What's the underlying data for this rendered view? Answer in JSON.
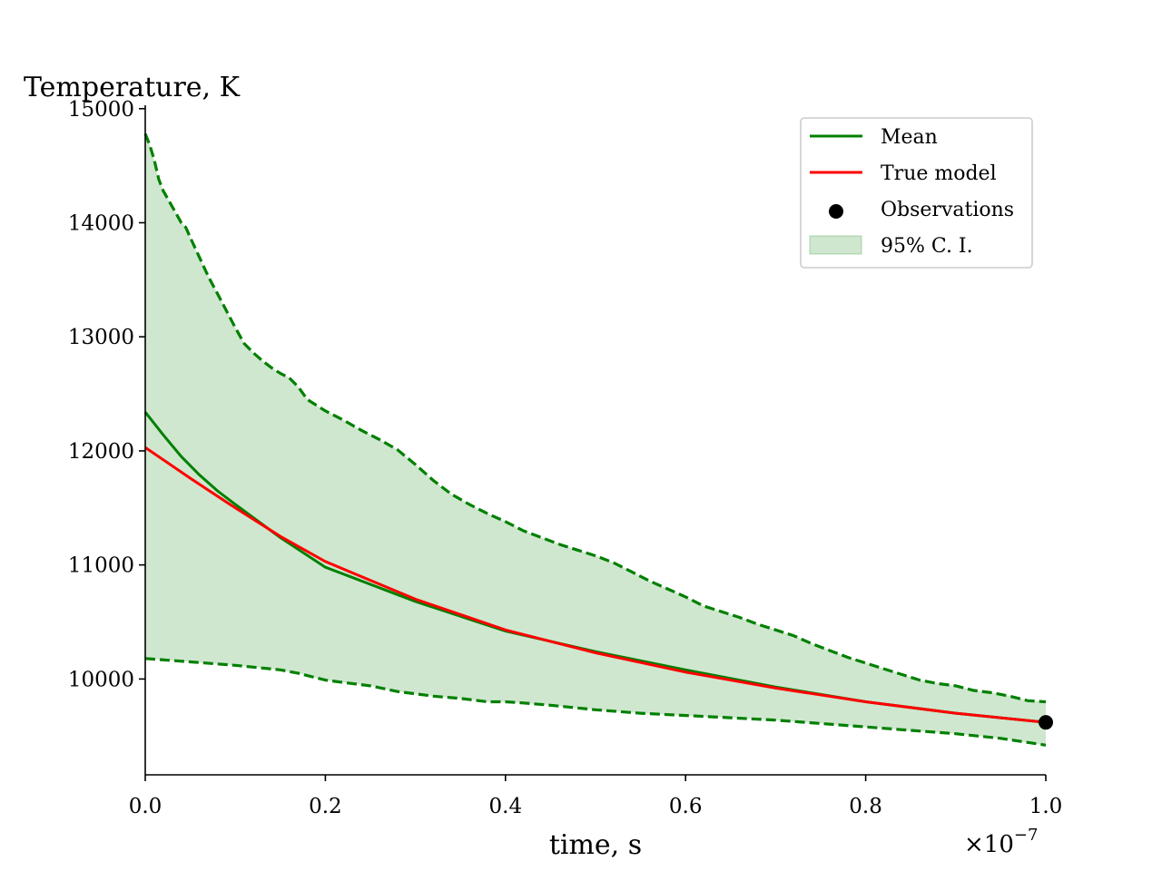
{
  "chart_data": {
    "type": "line",
    "title": "",
    "ylabel": "Temperature, K",
    "xlabel": "time, s",
    "x_multiplier_label": "×10",
    "x_multiplier_exponent": "−7",
    "xlim": [
      0.0,
      1.0
    ],
    "ylim": [
      9160,
      15030
    ],
    "x_ticks": [
      0.0,
      0.2,
      0.4,
      0.6,
      0.8,
      1.0
    ],
    "x_tick_labels": [
      "0.0",
      "0.2",
      "0.4",
      "0.6",
      "0.8",
      "1.0"
    ],
    "y_ticks": [
      10000,
      11000,
      12000,
      13000,
      14000,
      15000
    ],
    "y_tick_labels": [
      "10000",
      "11000",
      "12000",
      "13000",
      "14000",
      "15000"
    ],
    "grid": false,
    "legend_placement": "top-right",
    "series": [
      {
        "name": "Mean",
        "color": "#008000",
        "x": [
          0.0,
          0.02,
          0.04,
          0.06,
          0.08,
          0.1,
          0.15,
          0.2,
          0.3,
          0.4,
          0.5,
          0.6,
          0.7,
          0.8,
          0.9,
          1.0
        ],
        "y": [
          12340,
          12140,
          11950,
          11790,
          11650,
          11530,
          11240,
          10980,
          10680,
          10420,
          10240,
          10080,
          9930,
          9800,
          9700,
          9620
        ]
      },
      {
        "name": "True model",
        "color": "#ff0000",
        "x": [
          0.0,
          0.05,
          0.1,
          0.15,
          0.2,
          0.3,
          0.4,
          0.5,
          0.6,
          0.7,
          0.8,
          0.9,
          1.0
        ],
        "y": [
          12030,
          11760,
          11500,
          11250,
          11030,
          10700,
          10430,
          10230,
          10060,
          9920,
          9800,
          9700,
          9620
        ]
      },
      {
        "name": "Observations",
        "color": "#000000",
        "type": "scatter",
        "x": [
          1.0
        ],
        "y": [
          9620
        ]
      }
    ],
    "band": {
      "name": "95% C. I.",
      "color": "#008000",
      "upper": {
        "x": [
          0.0,
          0.005,
          0.01,
          0.015,
          0.02,
          0.03,
          0.04,
          0.045,
          0.05,
          0.06,
          0.07,
          0.08,
          0.09,
          0.1,
          0.11,
          0.12,
          0.13,
          0.14,
          0.15,
          0.16,
          0.17,
          0.18,
          0.2,
          0.22,
          0.24,
          0.26,
          0.28,
          0.3,
          0.32,
          0.34,
          0.36,
          0.38,
          0.4,
          0.42,
          0.44,
          0.46,
          0.48,
          0.5,
          0.52,
          0.54,
          0.56,
          0.58,
          0.6,
          0.62,
          0.64,
          0.66,
          0.68,
          0.7,
          0.72,
          0.74,
          0.76,
          0.78,
          0.8,
          0.82,
          0.84,
          0.86,
          0.88,
          0.9,
          0.92,
          0.94,
          0.96,
          0.98,
          1.0
        ],
        "y": [
          14780,
          14680,
          14550,
          14380,
          14280,
          14140,
          14000,
          13960,
          13870,
          13700,
          13530,
          13380,
          13230,
          13080,
          12940,
          12860,
          12790,
          12730,
          12680,
          12640,
          12560,
          12450,
          12350,
          12270,
          12180,
          12100,
          12010,
          11880,
          11740,
          11620,
          11530,
          11450,
          11380,
          11300,
          11240,
          11180,
          11130,
          11080,
          11020,
          10940,
          10860,
          10790,
          10720,
          10640,
          10590,
          10540,
          10480,
          10430,
          10380,
          10310,
          10250,
          10190,
          10140,
          10090,
          10040,
          9990,
          9960,
          9940,
          9900,
          9880,
          9850,
          9810,
          9800
        ]
      },
      "lower": {
        "x": [
          0.0,
          0.05,
          0.1,
          0.15,
          0.17,
          0.2,
          0.22,
          0.25,
          0.28,
          0.3,
          0.32,
          0.35,
          0.38,
          0.4,
          0.42,
          0.45,
          0.5,
          0.55,
          0.6,
          0.65,
          0.7,
          0.75,
          0.8,
          0.85,
          0.9,
          0.95,
          1.0
        ],
        "y": [
          10180,
          10150,
          10120,
          10080,
          10050,
          9990,
          9970,
          9940,
          9890,
          9870,
          9850,
          9830,
          9800,
          9800,
          9790,
          9770,
          9730,
          9700,
          9680,
          9660,
          9640,
          9610,
          9580,
          9550,
          9520,
          9480,
          9420
        ]
      }
    }
  }
}
